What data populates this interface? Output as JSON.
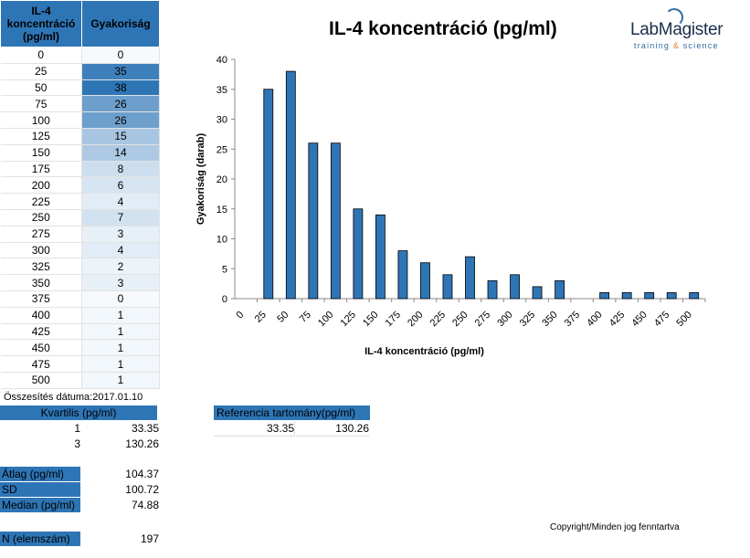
{
  "table": {
    "headers": [
      "IL-4 koncentráció (pg/ml)",
      "Gyakoriság"
    ],
    "rows": [
      [
        "0",
        "0"
      ],
      [
        "25",
        "35"
      ],
      [
        "50",
        "38"
      ],
      [
        "75",
        "26"
      ],
      [
        "100",
        "26"
      ],
      [
        "125",
        "15"
      ],
      [
        "150",
        "14"
      ],
      [
        "175",
        "8"
      ],
      [
        "200",
        "6"
      ],
      [
        "225",
        "4"
      ],
      [
        "250",
        "7"
      ],
      [
        "275",
        "3"
      ],
      [
        "300",
        "4"
      ],
      [
        "325",
        "2"
      ],
      [
        "350",
        "3"
      ],
      [
        "375",
        "0"
      ],
      [
        "400",
        "1"
      ],
      [
        "425",
        "1"
      ],
      [
        "450",
        "1"
      ],
      [
        "475",
        "1"
      ],
      [
        "500",
        "1"
      ]
    ]
  },
  "summary": {
    "date_label": "Összesítés dátuma:2017.01.10",
    "quartile_header": "Kvartilis (pg/ml)",
    "q1_index": "1",
    "q1_value": "33.35",
    "q3_index": "3",
    "q3_value": "130.26",
    "mean_label": "Átlag (pg/ml)",
    "mean_value": "104.37",
    "sd_label": "SD",
    "sd_value": "100.72",
    "median_label": "Median (pg/ml)",
    "median_value": "74.88",
    "n_label": "N (elemszám)",
    "n_value": "197"
  },
  "reference": {
    "header": "Referencia tartomány(pg/ml)",
    "low": "33.35",
    "high": "130.26"
  },
  "logo": {
    "brand": "LabMagister",
    "tagline_a": "training ",
    "tagline_amp": "&",
    "tagline_b": " science"
  },
  "copyright": "Copyright/Minden jog fenntartva",
  "colors": {
    "bar": "#2e75b6",
    "header": "#2e75b6"
  },
  "chart_data": {
    "type": "bar",
    "title": "IL-4 koncentráció (pg/ml)",
    "xlabel": "IL-4 koncentráció (pg/ml)",
    "ylabel": "Gyakoriság (darab)",
    "categories": [
      "0",
      "25",
      "50",
      "75",
      "100",
      "125",
      "150",
      "175",
      "200",
      "225",
      "250",
      "275",
      "300",
      "325",
      "350",
      "375",
      "400",
      "425",
      "450",
      "475",
      "500"
    ],
    "values": [
      0,
      35,
      38,
      26,
      26,
      15,
      14,
      8,
      6,
      4,
      7,
      3,
      4,
      2,
      3,
      0,
      1,
      1,
      1,
      1,
      1
    ],
    "ylim": [
      0,
      40
    ],
    "yticks": [
      0,
      5,
      10,
      15,
      20,
      25,
      30,
      35,
      40
    ],
    "grid": false
  }
}
